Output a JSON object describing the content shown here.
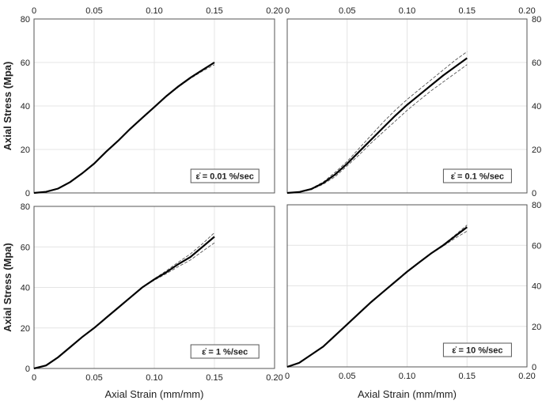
{
  "chart_data": [
    {
      "type": "line",
      "label": "ε̇ = 0.01 %/sec",
      "ylabel": "Axial Stress (Mpa)",
      "xlabel": "",
      "xlim": [
        0,
        0.2
      ],
      "ylim": [
        0,
        80
      ],
      "xticks": [
        "0",
        "0.05",
        "0.10",
        "0.15",
        "0.20"
      ],
      "yticks": [
        "0",
        "20",
        "40",
        "60",
        "80"
      ],
      "xaxis_position": "top",
      "yaxis_position": "left",
      "grid": true,
      "x": [
        0,
        0.01,
        0.02,
        0.03,
        0.04,
        0.05,
        0.06,
        0.07,
        0.08,
        0.09,
        0.1,
        0.11,
        0.12,
        0.13,
        0.14,
        0.15
      ],
      "series": [
        {
          "style": "solid",
          "values": [
            0,
            0.5,
            2,
            5,
            9,
            13.5,
            19,
            24,
            29.5,
            34.5,
            39.5,
            44.5,
            49,
            53,
            56.5,
            60
          ]
        },
        {
          "style": "dashed",
          "values": [
            0,
            0.5,
            2,
            5,
            9,
            13.6,
            19.1,
            24.1,
            29.6,
            34.6,
            39.6,
            44.6,
            49.1,
            53.2,
            56.7,
            60.2
          ]
        },
        {
          "style": "dashed",
          "values": [
            0,
            0.5,
            2,
            5,
            9,
            13.4,
            18.9,
            23.9,
            29.4,
            34.4,
            39.3,
            44.3,
            48.7,
            52.6,
            56,
            59
          ]
        }
      ]
    },
    {
      "type": "line",
      "label": "ε̇ = 0.1 %/sec",
      "ylabel": "",
      "xlabel": "",
      "xlim": [
        0,
        0.2
      ],
      "ylim": [
        0,
        80
      ],
      "xticks": [
        "0",
        "0.05",
        "0.10",
        "0.15",
        "0.20"
      ],
      "yticks": [
        "0",
        "20",
        "40",
        "60",
        "80"
      ],
      "xaxis_position": "top",
      "yaxis_position": "right",
      "grid": true,
      "x": [
        0,
        0.01,
        0.02,
        0.03,
        0.04,
        0.05,
        0.06,
        0.07,
        0.08,
        0.09,
        0.1,
        0.11,
        0.12,
        0.13,
        0.14,
        0.15
      ],
      "series": [
        {
          "style": "solid",
          "values": [
            0,
            0.4,
            1.8,
            4.5,
            8.5,
            13.5,
            19,
            24.5,
            30,
            35.5,
            40.5,
            45,
            49.5,
            54,
            58,
            62
          ]
        },
        {
          "style": "dashed",
          "values": [
            0,
            0.5,
            2,
            5,
            9.5,
            14.5,
            20.5,
            26.5,
            32.5,
            38,
            43,
            47.5,
            52,
            56.5,
            61,
            65
          ]
        },
        {
          "style": "dashed",
          "values": [
            0,
            0.3,
            1.5,
            4,
            7.5,
            12.5,
            17.5,
            23,
            28,
            33,
            38,
            42.5,
            47,
            51,
            55,
            59
          ]
        }
      ]
    },
    {
      "type": "line",
      "label": "ε̇ = 1 %/sec",
      "ylabel": "Axial Stress (Mpa)",
      "xlabel": "Axial Strain (mm/mm)",
      "xlim": [
        0,
        0.2
      ],
      "ylim": [
        0,
        80
      ],
      "xticks": [
        "0",
        "0.05",
        "0.10",
        "0.15",
        "0.20"
      ],
      "yticks": [
        "0",
        "20",
        "40",
        "60",
        "80"
      ],
      "xaxis_position": "bottom",
      "yaxis_position": "left",
      "grid": true,
      "x": [
        0,
        0.01,
        0.02,
        0.03,
        0.04,
        0.05,
        0.06,
        0.07,
        0.08,
        0.09,
        0.1,
        0.11,
        0.12,
        0.13,
        0.14,
        0.15
      ],
      "series": [
        {
          "style": "solid",
          "values": [
            0,
            1.5,
            5.5,
            10.5,
            15.5,
            20,
            25,
            30,
            35,
            40,
            44,
            47.5,
            51.5,
            55,
            60,
            65
          ]
        },
        {
          "style": "dashed",
          "values": [
            0,
            1.5,
            5.5,
            10.5,
            15.5,
            20,
            25,
            30,
            35,
            40,
            44.3,
            48.2,
            52.5,
            56.5,
            61.5,
            67
          ]
        },
        {
          "style": "dashed",
          "values": [
            0,
            1.5,
            5.5,
            10.5,
            15.5,
            20,
            25,
            30,
            35,
            40,
            43.6,
            46.8,
            50.3,
            53.5,
            57.8,
            62
          ]
        }
      ]
    },
    {
      "type": "line",
      "label": "ε̇ = 10 %/sec",
      "ylabel": "",
      "xlabel": "Axial Strain (mm/mm)",
      "xlim": [
        0,
        0.2
      ],
      "ylim": [
        0,
        80
      ],
      "xticks": [
        "0",
        "0.05",
        "0.10",
        "0.15",
        "0.20"
      ],
      "yticks": [
        "0",
        "20",
        "40",
        "60",
        "80"
      ],
      "xaxis_position": "bottom",
      "yaxis_position": "right",
      "grid": true,
      "x": [
        0,
        0.01,
        0.02,
        0.03,
        0.04,
        0.05,
        0.06,
        0.07,
        0.08,
        0.09,
        0.1,
        0.11,
        0.12,
        0.13,
        0.14,
        0.15
      ],
      "series": [
        {
          "style": "solid",
          "values": [
            0,
            2,
            6,
            10,
            15.5,
            21,
            26.5,
            32,
            37,
            42,
            47,
            51.5,
            56,
            60,
            64.5,
            69
          ]
        },
        {
          "style": "dashed",
          "values": [
            0,
            2,
            6,
            10,
            15.5,
            21,
            26.5,
            32,
            37,
            42,
            47,
            51.5,
            56,
            60.2,
            65,
            70
          ]
        },
        {
          "style": "dashed",
          "values": [
            0,
            2,
            6,
            10,
            15.5,
            21,
            26.5,
            32,
            37,
            42,
            47,
            51.5,
            55.8,
            59.6,
            63.5,
            67
          ]
        }
      ]
    }
  ],
  "colors": {
    "main_line": "#000000",
    "dashed_line": "#555555",
    "grid": "#e4e4e4",
    "frame": "#555555"
  }
}
